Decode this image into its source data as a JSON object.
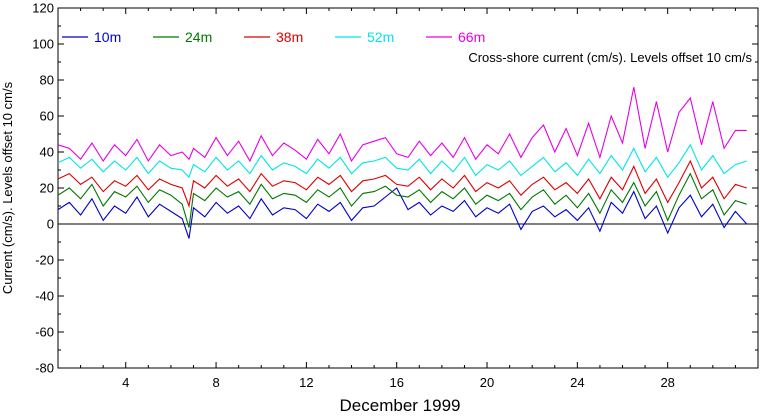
{
  "chart_data": {
    "type": "line",
    "title": "",
    "annotation": "Cross-shore current (cm/s). Levels offset 10 cm/s",
    "xlabel": "December 1999",
    "ylabel": "Current (cm/s). Levels offset 10 cm/s",
    "xlim": [
      1,
      32
    ],
    "ylim": [
      -80,
      120
    ],
    "xticks": [
      4,
      8,
      12,
      16,
      20,
      24,
      28
    ],
    "xtick_labels": [
      "4",
      "8",
      "12",
      "16",
      "20",
      "24",
      "28"
    ],
    "yticks": [
      -80,
      -60,
      -40,
      -20,
      0,
      20,
      40,
      60,
      80,
      100,
      120
    ],
    "ytick_labels": [
      "-80",
      "-60",
      "-40",
      "-20",
      "0",
      "20",
      "40",
      "60",
      "80",
      "100",
      "120"
    ],
    "zero_line": true,
    "legend_position": "top-left",
    "series": [
      {
        "name": "10m",
        "color": "#0000cc",
        "offset": 0,
        "x": [
          1,
          1.5,
          2,
          2.5,
          3,
          3.5,
          4,
          4.5,
          5,
          5.5,
          6,
          6.5,
          6.8,
          7,
          7.5,
          8,
          8.5,
          9,
          9.5,
          10,
          10.5,
          11,
          11.5,
          12,
          12.5,
          13,
          13.5,
          14,
          14.5,
          15,
          15.5,
          16,
          16.5,
          17,
          17.5,
          18,
          18.5,
          19,
          19.5,
          20,
          20.5,
          21,
          21.5,
          22,
          22.5,
          23,
          23.5,
          24,
          24.5,
          25,
          25.5,
          26,
          26.5,
          27,
          27.5,
          28,
          28.5,
          29,
          29.5,
          30,
          30.5,
          31,
          31.5
        ],
        "values": [
          8,
          12,
          5,
          14,
          2,
          10,
          6,
          15,
          4,
          11,
          7,
          3,
          -8,
          9,
          4,
          12,
          6,
          10,
          3,
          14,
          5,
          9,
          8,
          3,
          11,
          7,
          12,
          2,
          9,
          10,
          15,
          20,
          8,
          12,
          5,
          10,
          7,
          13,
          4,
          9,
          6,
          11,
          -3,
          7,
          10,
          4,
          8,
          2,
          9,
          -4,
          12,
          6,
          18,
          3,
          10,
          -5,
          9,
          16,
          4,
          11,
          -2,
          7,
          0
        ]
      },
      {
        "name": "24m",
        "color": "#007700",
        "offset": 10,
        "x": [
          1,
          1.5,
          2,
          2.5,
          3,
          3.5,
          4,
          4.5,
          5,
          5.5,
          6,
          6.5,
          6.8,
          7,
          7.5,
          8,
          8.5,
          9,
          9.5,
          10,
          10.5,
          11,
          11.5,
          12,
          12.5,
          13,
          13.5,
          14,
          14.5,
          15,
          15.5,
          16,
          16.5,
          17,
          17.5,
          18,
          18.5,
          19,
          19.5,
          20,
          20.5,
          21,
          21.5,
          22,
          22.5,
          23,
          23.5,
          24,
          24.5,
          25,
          25.5,
          26,
          26.5,
          27,
          27.5,
          28,
          28.5,
          29,
          29.5,
          30,
          30.5,
          31,
          31.5
        ],
        "values": [
          16,
          20,
          14,
          22,
          10,
          18,
          15,
          21,
          12,
          19,
          16,
          11,
          -2,
          17,
          13,
          20,
          15,
          18,
          11,
          22,
          14,
          17,
          16,
          12,
          19,
          15,
          20,
          10,
          17,
          18,
          21,
          16,
          15,
          19,
          12,
          18,
          14,
          20,
          11,
          16,
          13,
          17,
          8,
          15,
          19,
          11,
          16,
          9,
          17,
          6,
          19,
          12,
          23,
          10,
          18,
          2,
          16,
          28,
          14,
          19,
          5,
          13,
          11
        ]
      },
      {
        "name": "38m",
        "color": "#dd0000",
        "offset": 20,
        "x": [
          1,
          1.5,
          2,
          2.5,
          3,
          3.5,
          4,
          4.5,
          5,
          5.5,
          6,
          6.5,
          6.8,
          7,
          7.5,
          8,
          8.5,
          9,
          9.5,
          10,
          10.5,
          11,
          11.5,
          12,
          12.5,
          13,
          13.5,
          14,
          14.5,
          15,
          15.5,
          16,
          16.5,
          17,
          17.5,
          18,
          18.5,
          19,
          19.5,
          20,
          20.5,
          21,
          21.5,
          22,
          22.5,
          23,
          23.5,
          24,
          24.5,
          25,
          25.5,
          26,
          26.5,
          27,
          27.5,
          28,
          28.5,
          29,
          29.5,
          30,
          30.5,
          31,
          31.5
        ],
        "values": [
          25,
          28,
          22,
          26,
          18,
          24,
          21,
          27,
          19,
          25,
          22,
          20,
          10,
          24,
          20,
          27,
          21,
          25,
          18,
          28,
          21,
          24,
          23,
          19,
          26,
          22,
          27,
          18,
          24,
          25,
          27,
          22,
          21,
          26,
          19,
          25,
          20,
          27,
          18,
          23,
          20,
          24,
          16,
          22,
          26,
          19,
          23,
          17,
          25,
          14,
          26,
          19,
          32,
          17,
          25,
          12,
          23,
          35,
          20,
          26,
          14,
          22,
          20
        ]
      },
      {
        "name": "52m",
        "color": "#00e5e5",
        "offset": 30,
        "x": [
          1,
          1.5,
          2,
          2.5,
          3,
          3.5,
          4,
          4.5,
          5,
          5.5,
          6,
          6.5,
          6.8,
          7,
          7.5,
          8,
          8.5,
          9,
          9.5,
          10,
          10.5,
          11,
          11.5,
          12,
          12.5,
          13,
          13.5,
          14,
          14.5,
          15,
          15.5,
          16,
          16.5,
          17,
          17.5,
          18,
          18.5,
          19,
          19.5,
          20,
          20.5,
          21,
          21.5,
          22,
          22.5,
          23,
          23.5,
          24,
          24.5,
          25,
          25.5,
          26,
          26.5,
          27,
          27.5,
          28,
          28.5,
          29,
          29.5,
          30,
          30.5,
          31,
          31.5
        ],
        "values": [
          34,
          37,
          31,
          36,
          29,
          35,
          30,
          37,
          28,
          35,
          31,
          30,
          26,
          33,
          29,
          37,
          30,
          35,
          28,
          38,
          30,
          34,
          32,
          28,
          36,
          31,
          37,
          28,
          34,
          35,
          37,
          31,
          30,
          36,
          28,
          35,
          29,
          37,
          27,
          33,
          30,
          35,
          27,
          32,
          37,
          29,
          34,
          27,
          36,
          28,
          38,
          30,
          42,
          29,
          37,
          26,
          34,
          44,
          30,
          38,
          28,
          33,
          35
        ]
      },
      {
        "name": "66m",
        "color": "#e600e6",
        "offset": 40,
        "x": [
          1,
          1.5,
          2,
          2.5,
          3,
          3.5,
          4,
          4.5,
          5,
          5.5,
          6,
          6.5,
          6.8,
          7,
          7.5,
          8,
          8.5,
          9,
          9.5,
          10,
          10.5,
          11,
          11.5,
          12,
          12.5,
          13,
          13.5,
          14,
          14.5,
          15,
          15.5,
          16,
          16.5,
          17,
          17.5,
          18,
          18.5,
          19,
          19.5,
          20,
          20.5,
          21,
          21.5,
          22,
          22.5,
          23,
          23.5,
          24,
          24.5,
          25,
          25.5,
          26,
          26.5,
          27,
          27.5,
          28,
          28.5,
          29,
          29.5,
          30,
          30.5,
          31,
          31.5
        ],
        "values": [
          44,
          42,
          36,
          45,
          35,
          44,
          38,
          47,
          35,
          44,
          38,
          40,
          36,
          42,
          37,
          48,
          38,
          46,
          35,
          49,
          38,
          45,
          41,
          36,
          47,
          39,
          50,
          35,
          44,
          46,
          48,
          39,
          37,
          46,
          38,
          45,
          37,
          48,
          36,
          44,
          39,
          50,
          37,
          48,
          55,
          40,
          53,
          38,
          56,
          37,
          60,
          45,
          76,
          42,
          68,
          40,
          62,
          70,
          44,
          68,
          42,
          52,
          52
        ]
      }
    ]
  }
}
